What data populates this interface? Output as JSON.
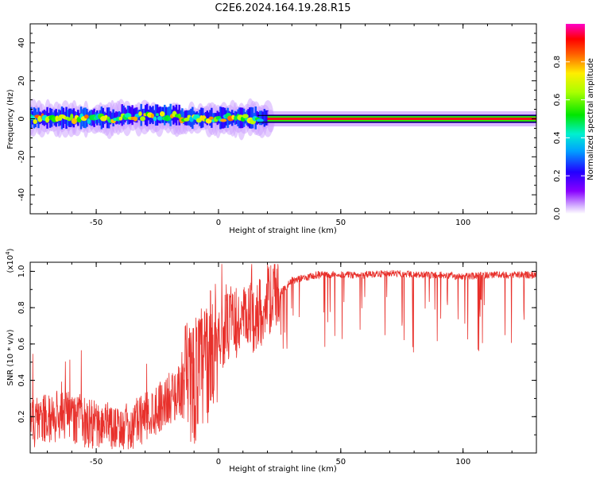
{
  "title": "C2E6.2024.164.19.28.R15",
  "chart_data": [
    {
      "type": "heatmap",
      "xlabel": "Height of straight line (km)",
      "ylabel": "Frequency (Hz)",
      "xlim": [
        -77,
        130
      ],
      "ylim": [
        -50,
        50
      ],
      "xticks": [
        -50,
        0,
        50,
        100
      ],
      "yticks": [
        -40,
        -20,
        0,
        20,
        40
      ],
      "colorbar": {
        "label": "Normalized spectral amplitude",
        "range": [
          0,
          1
        ],
        "ticks": [
          0.0,
          0.2,
          0.4,
          0.6,
          0.8
        ],
        "colormap": "rainbow (white-violet-blue-cyan-green-yellow-red-magenta)"
      },
      "grid": false,
      "bands": [
        {
          "x_range": [
            -77,
            20
          ],
          "center_hz": 0,
          "half_width_hz": 4,
          "amplitude_range": [
            0.2,
            0.9
          ],
          "pattern": "scattered blobs"
        },
        {
          "x_range": [
            20,
            130
          ],
          "center_hz": 0,
          "half_width_hz": 1.5,
          "amplitude_range": [
            0.3,
            1.0
          ],
          "pattern": "continuous line"
        }
      ]
    },
    {
      "type": "line",
      "xlabel": "Height of straight line (km)",
      "ylabel": "SNR (10 * v/v)",
      "y_multiplier": "(x10^4)",
      "xlim": [
        -77,
        130
      ],
      "ylim": [
        0,
        1.05
      ],
      "xticks": [
        -50,
        0,
        50,
        100
      ],
      "yticks": [
        0.2,
        0.4,
        0.6,
        0.8,
        1.0
      ],
      "grid": false,
      "series": [
        {
          "color": "#e8302b",
          "x": [
            -77,
            -70,
            -60,
            -50,
            -40,
            -35,
            -30,
            -20,
            -15,
            -10,
            -5,
            0,
            5,
            10,
            15,
            20,
            25,
            30,
            40,
            50,
            60,
            70,
            80,
            90,
            100,
            110,
            120,
            130
          ],
          "y": [
            0.15,
            0.2,
            0.2,
            0.15,
            0.12,
            0.15,
            0.2,
            0.3,
            0.35,
            0.4,
            0.5,
            0.65,
            0.7,
            0.72,
            0.75,
            0.82,
            0.9,
            0.97,
            1.0,
            1.0,
            1.0,
            1.01,
            1.0,
            1.0,
            0.99,
            1.0,
            1.0,
            1.0
          ]
        }
      ],
      "dips_min_y": [
        0.55,
        0.65
      ]
    }
  ]
}
